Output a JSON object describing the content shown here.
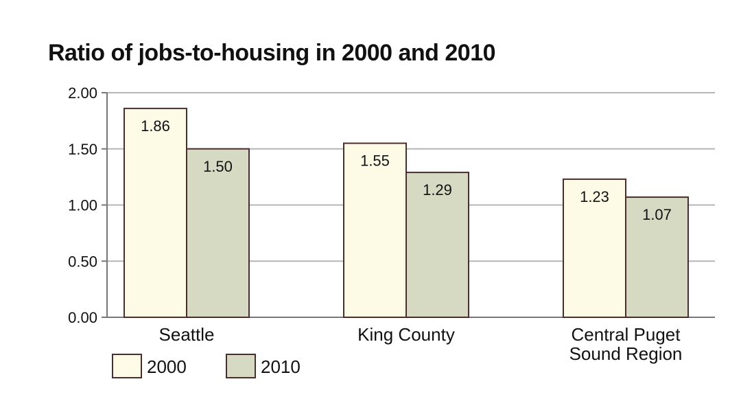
{
  "chart_data": {
    "type": "bar",
    "title": "Ratio of jobs-to-housing in 2000 and 2010",
    "categories": [
      "Seattle",
      "King County",
      "Central Puget Sound Region"
    ],
    "category_lines": [
      [
        "Seattle"
      ],
      [
        "King County"
      ],
      [
        "Central Puget",
        "Sound Region"
      ]
    ],
    "series": [
      {
        "name": "2000",
        "values": [
          1.86,
          1.55,
          1.23
        ],
        "value_labels": [
          "1.86",
          "1.55",
          "1.23"
        ],
        "color": "#fdfbe6"
      },
      {
        "name": "2010",
        "values": [
          1.5,
          1.29,
          1.07
        ],
        "value_labels": [
          "1.50",
          "1.29",
          "1.07"
        ],
        "color": "#d6dac3"
      }
    ],
    "ylim": [
      0,
      2
    ],
    "yticks": [
      0,
      0.5,
      1,
      1.5,
      2
    ],
    "ytick_labels": [
      "0.00",
      "0.50",
      "1.00",
      "1.50",
      "2.00"
    ],
    "grid": true,
    "legend_position": "bottom-left",
    "bar_outline_color": "#4a2e2e",
    "grid_color": "#b5b5b5",
    "axis_color": "#777777"
  }
}
